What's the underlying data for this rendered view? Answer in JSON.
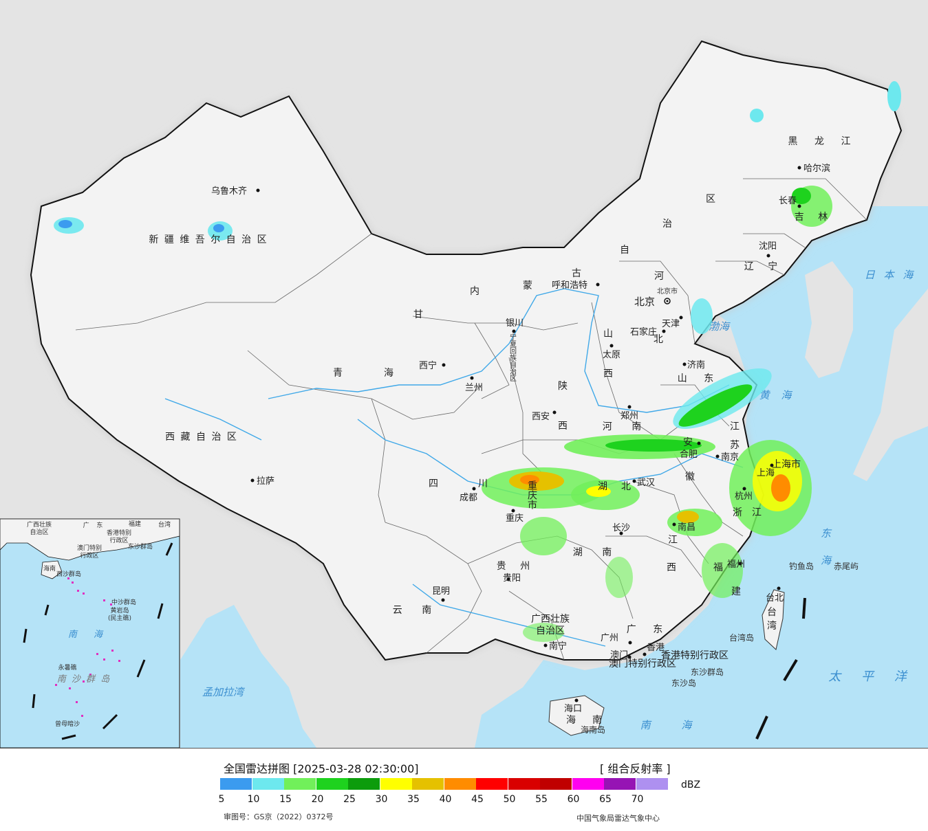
{
  "legend": {
    "title": "全国雷达拼图 [2025-03-28 02:30:00]",
    "product": "[ 组合反射率 ]",
    "unit": "dBZ",
    "ticks": [
      "5",
      "10",
      "15",
      "20",
      "25",
      "30",
      "35",
      "40",
      "45",
      "50",
      "55",
      "60",
      "65",
      "70"
    ],
    "colors": [
      "#3b9bef",
      "#6de8ee",
      "#71f05a",
      "#1ed21e",
      "#0c9c0c",
      "#ffff00",
      "#e5c100",
      "#ff8c00",
      "#ff0000",
      "#d90000",
      "#c00000",
      "#ff00f0",
      "#9614b4",
      "#ae90f0"
    ]
  },
  "footer": {
    "approval": "审图号：GS京（2022）0372号",
    "agency": "中国气象局雷达气象中心"
  },
  "provinces": {
    "xinjiang": "新 疆 维 吾 尔 自 治 区",
    "xizang": "西 藏 自 治 区",
    "qinghai_1": "青",
    "qinghai_2": "海",
    "gansu": "甘",
    "sichuan_1": "四",
    "sichuan_2": "川",
    "yunnan": "云 南",
    "guizhou": "贵 州",
    "guangxi_1": "广西壮族",
    "guangxi_2": "自治区",
    "guangdong": "广 东",
    "hainan_1": "海",
    "hainan_2": "南",
    "nmg_1": "内",
    "nmg_2": "蒙",
    "nmg_3": "古",
    "nmg_4": "自",
    "nmg_5": "治",
    "nmg_6": "区",
    "heilongjiang": "黑 龙 江",
    "jilin": "吉 林",
    "liaoning": "辽 宁",
    "hebei_1": "河",
    "hebei_2": "北",
    "shanxi_1": "山",
    "shanxi_2": "西",
    "shaanxi_1": "陕",
    "shaanxi_2": "西",
    "henan": "河 南",
    "shandong": "山 东",
    "jiangsu_1": "江",
    "jiangsu_2": "苏",
    "anhui_1": "安",
    "anhui_2": "徽",
    "hubei_1": "湖",
    "hubei_2": "北",
    "hunan": "湖 南",
    "jiangxi_1": "江",
    "jiangxi_2": "西",
    "zhejiang_1": "浙",
    "zhejiang_2": "江",
    "fujian_1": "福",
    "fujian_2": "建",
    "taiwan_1": "台",
    "taiwan_2": "湾",
    "ningxia": "宁夏回族自治区",
    "chongqing": "重庆市",
    "shanghai": "上海市",
    "beijing": "北京市",
    "tianjin": "天津",
    "hk": "香港特别行政区",
    "macau": "澳门特别行政区"
  },
  "cities": {
    "urumqi": "乌鲁木齐",
    "lhasa": "拉萨",
    "xining": "西宁",
    "lanzhou": "兰州",
    "yinchuan": "银川",
    "hohhot": "呼和浩特",
    "beijing": "北京",
    "tianjin": "天津",
    "shijiazhuang": "石家庄",
    "taiyuan": "太原",
    "xian": "西安",
    "zhengzhou": "郑州",
    "jinan": "济南",
    "shenyang": "沈阳",
    "changchun": "长春",
    "harbin": "哈尔滨",
    "chengdu": "成都",
    "chongqing": "重庆",
    "wuhan": "武汉",
    "hefei": "合肥",
    "nanjing": "南京",
    "shanghai": "上海",
    "hangzhou": "杭州",
    "nanchang": "南昌",
    "changsha": "长沙",
    "fuzhou": "福州",
    "guiyang": "贵阳",
    "kunming": "昆明",
    "nanning": "南宁",
    "guangzhou": "广州",
    "hongkong": "香港",
    "macau": "澳门",
    "haikou": "海口",
    "taipei": "台北"
  },
  "seas": {
    "japan_sea": "日 本 海",
    "bohai": "渤海",
    "yellow_sea": "黄 海",
    "east_sea": "东 海",
    "pacific": "太 平 洋",
    "south_sea": "南 海",
    "bengal": "孟加拉湾"
  },
  "islands": {
    "diaoyu": "钓鱼岛",
    "chiwei": "赤尾屿",
    "taiwan_island": "台湾岛",
    "dongsha_islands": "东沙群岛",
    "dongsha": "东沙岛",
    "hainan_island": "海南岛"
  },
  "inset": {
    "guangxi": "广西壮族",
    "guangxi_2": "自治区",
    "guangdong": "广 东",
    "fujian": "福建",
    "taiwan": "台湾",
    "hk": "香港特别",
    "hk_2": "行政区",
    "macau": "澳门特别",
    "macau_2": "行政区",
    "dongsha": "东沙群岛",
    "hainan": "海南",
    "xisha": "西沙群岛",
    "zhongsha": "中沙群岛",
    "huangyan": "黄岩岛",
    "huangyan_2": "(民主礁)",
    "south_sea": "南 海",
    "nansha": "南 沙 群 岛",
    "yongshu": "永暑礁",
    "zengmu": "曾母暗沙"
  }
}
